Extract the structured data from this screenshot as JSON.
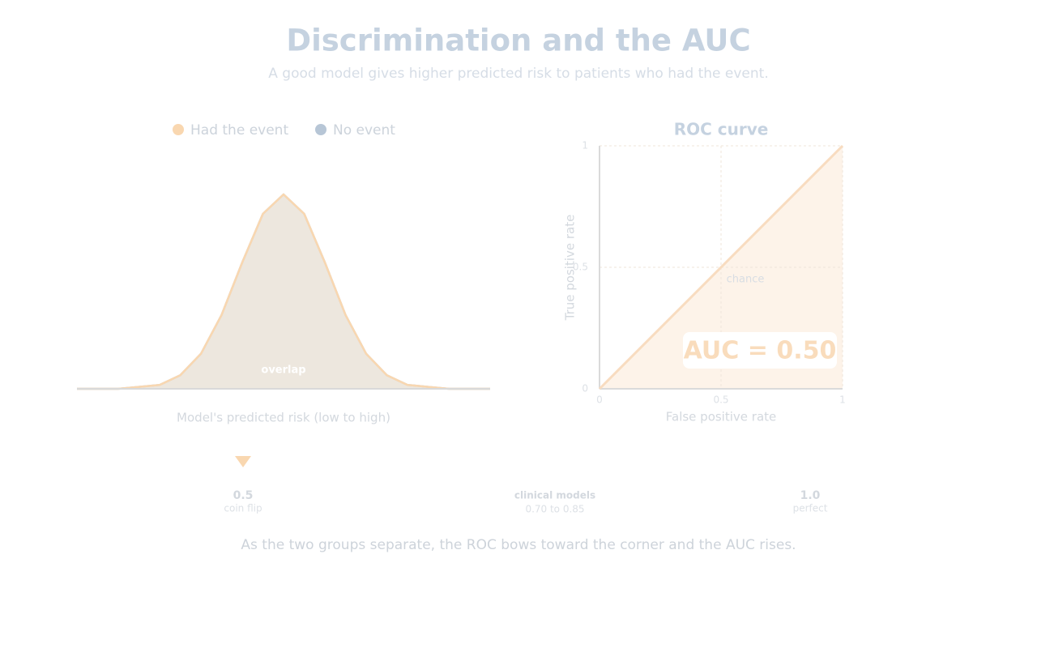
{
  "header": {
    "title": "Discrimination and the AUC",
    "subtitle": "A good model gives higher predicted risk to patients who had the event."
  },
  "chart_data": [
    {
      "type": "area",
      "x": [
        0,
        0.05,
        0.1,
        0.15,
        0.2,
        0.25,
        0.3,
        0.35,
        0.4,
        0.45,
        0.5,
        0.55,
        0.6,
        0.65,
        0.7,
        0.75,
        0.8,
        0.85,
        0.9,
        0.95,
        1
      ],
      "series": [
        {
          "name": "Had the event",
          "color": "#f9d7b0",
          "values": [
            0,
            0,
            0,
            0.01,
            0.02,
            0.07,
            0.18,
            0.38,
            0.65,
            0.9,
            1,
            0.9,
            0.65,
            0.38,
            0.18,
            0.07,
            0.02,
            0.01,
            0,
            0,
            0
          ]
        },
        {
          "name": "No event",
          "color": "#b7c6d6",
          "values": [
            0,
            0,
            0,
            0.01,
            0.02,
            0.07,
            0.18,
            0.38,
            0.65,
            0.9,
            1,
            0.9,
            0.65,
            0.38,
            0.18,
            0.07,
            0.02,
            0.01,
            0,
            0,
            0
          ]
        }
      ],
      "xlim": [
        0,
        1
      ],
      "ylim": [
        0,
        1
      ],
      "annotation": "overlap",
      "xlabel": "Model's predicted risk  (low to high)"
    },
    {
      "type": "line",
      "title": "ROC curve",
      "x": [
        0,
        1
      ],
      "values": [
        0,
        1
      ],
      "color": "#f8dcc0",
      "xlim": [
        0,
        1
      ],
      "ylim": [
        0,
        1
      ],
      "xticks": [
        0,
        0.5,
        1
      ],
      "yticks": [
        0,
        0.5,
        1
      ],
      "grid": true,
      "xlabel": "False positive rate",
      "ylabel": "True positive rate",
      "annotation": "chance",
      "auc_label": "AUC = 0.50"
    }
  ],
  "auc_scale": {
    "low": {
      "value": "0.5",
      "label": "coin flip"
    },
    "middle": {
      "value": "clinical models",
      "label": "0.70 to 0.85"
    },
    "high": {
      "value": "1.0",
      "label": "perfect"
    }
  },
  "caption": "As the two groups separate, the ROC bows toward the corner and the AUC rises."
}
